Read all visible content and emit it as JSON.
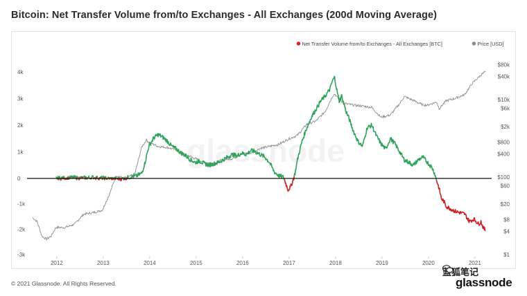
{
  "page": {
    "title": "Bitcoin: Net Transfer Volume from/to Exchanges - All Exchanges (200d Moving Average)",
    "footer": "© 2021 Glassnode. All Rights Reserved.",
    "brand": "glassnode",
    "watermark": "glassnode",
    "overlay_text": "蓝狐笔记"
  },
  "colors": {
    "positive_flow": "#2da45a",
    "negative_flow": "#cc1f1f",
    "price": "#8c8c8c",
    "zero_line": "#111111",
    "legend_dot_flow": "#d62728",
    "legend_dot_price": "#8c8c8c"
  },
  "chart_data": {
    "type": "line",
    "title": "Bitcoin: Net Transfer Volume from/to Exchanges - All Exchanges (200d Moving Average)",
    "legend_position": "top-right",
    "grid": false,
    "legend": [
      {
        "label": "Net Transfer Volume from/to Exchanges - All Exchanges [BTC]",
        "color": "#d62728"
      },
      {
        "label": "Price [USD]",
        "color": "#8c8c8c"
      }
    ],
    "x_ticks": [
      "2012",
      "2013",
      "2014",
      "2015",
      "2016",
      "2017",
      "2018",
      "2019",
      "2020",
      "2021"
    ],
    "x_range": [
      2011.5,
      2021.35
    ],
    "y_left": {
      "ticks": [
        {
          "label": "4k",
          "value": 4000
        },
        {
          "label": "3k",
          "value": 3000
        },
        {
          "label": "2k",
          "value": 2000
        },
        {
          "label": "1k",
          "value": 1000
        },
        {
          "label": "0",
          "value": 0
        },
        {
          "label": "-1k",
          "value": -1000
        },
        {
          "label": "-2k",
          "value": -2000
        },
        {
          "label": "-3k",
          "value": -3000
        }
      ],
      "range": [
        -3000,
        4300
      ]
    },
    "y_right": {
      "scale": "log",
      "ticks": [
        {
          "label": "$80k",
          "value": 80000
        },
        {
          "label": "$40k",
          "value": 40000
        },
        {
          "label": "$10k",
          "value": 10000
        },
        {
          "label": "$6k",
          "value": 6000
        },
        {
          "label": "$2k",
          "value": 2000
        },
        {
          "label": "$800",
          "value": 800
        },
        {
          "label": "$400",
          "value": 400
        },
        {
          "label": "$100",
          "value": 100
        },
        {
          "label": "$60",
          "value": 60
        },
        {
          "label": "$20",
          "value": 20
        },
        {
          "label": "$8",
          "value": 8
        },
        {
          "label": "$4",
          "value": 4
        },
        {
          "label": "$1",
          "value": 1
        }
      ],
      "range": [
        1,
        100000
      ]
    },
    "series": [
      {
        "name": "Net Transfer Volume from/to Exchanges - All Exchanges [BTC]",
        "axis": "left",
        "x": [
          2012.0,
          2012.3,
          2012.6,
          2012.8,
          2013.0,
          2013.2,
          2013.4,
          2013.6,
          2013.75,
          2013.85,
          2013.92,
          2014.0,
          2014.1,
          2014.2,
          2014.3,
          2014.4,
          2014.5,
          2014.6,
          2014.7,
          2014.8,
          2014.9,
          2015.0,
          2015.1,
          2015.2,
          2015.3,
          2015.4,
          2015.5,
          2015.6,
          2015.7,
          2015.8,
          2015.9,
          2016.0,
          2016.1,
          2016.2,
          2016.3,
          2016.4,
          2016.5,
          2016.6,
          2016.7,
          2016.8,
          2016.9,
          2016.95,
          2017.0,
          2017.05,
          2017.1,
          2017.15,
          2017.2,
          2017.3,
          2017.4,
          2017.5,
          2017.6,
          2017.7,
          2017.8,
          2017.9,
          2017.95,
          2018.0,
          2018.05,
          2018.1,
          2018.15,
          2018.2,
          2018.25,
          2018.3,
          2018.4,
          2018.5,
          2018.6,
          2018.7,
          2018.8,
          2018.9,
          2019.0,
          2019.1,
          2019.2,
          2019.3,
          2019.4,
          2019.5,
          2019.6,
          2019.7,
          2019.8,
          2019.9,
          2020.0,
          2020.1,
          2020.15,
          2020.2,
          2020.25,
          2020.3,
          2020.35,
          2020.4,
          2020.5,
          2020.6,
          2020.7,
          2020.8,
          2020.9,
          2021.0,
          2021.1,
          2021.15,
          2021.2,
          2021.25
        ],
        "y": [
          0,
          30,
          20,
          40,
          10,
          0,
          -20,
          50,
          100,
          200,
          600,
          1200,
          1500,
          1650,
          1550,
          1400,
          1200,
          1100,
          950,
          850,
          700,
          600,
          650,
          550,
          500,
          550,
          600,
          700,
          800,
          900,
          850,
          950,
          900,
          1050,
          1000,
          900,
          800,
          600,
          250,
          100,
          50,
          -200,
          -450,
          -350,
          -100,
          200,
          700,
          1400,
          1900,
          2300,
          2600,
          2900,
          3100,
          3350,
          3650,
          3800,
          3300,
          2900,
          3100,
          2800,
          2500,
          2300,
          1800,
          1400,
          1200,
          1900,
          2000,
          1600,
          1300,
          1100,
          1500,
          1300,
          1000,
          700,
          600,
          500,
          700,
          800,
          600,
          400,
          200,
          -100,
          -400,
          -800,
          -900,
          -1100,
          -1200,
          -1300,
          -1350,
          -1400,
          -1700,
          -1600,
          -1800,
          -1700,
          -1950,
          -2050
        ]
      },
      {
        "name": "Price [USD]",
        "axis": "right",
        "x": [
          2011.5,
          2011.6,
          2011.7,
          2011.8,
          2011.9,
          2012.0,
          2012.2,
          2012.4,
          2012.6,
          2012.8,
          2013.0,
          2013.15,
          2013.3,
          2013.5,
          2013.7,
          2013.85,
          2013.95,
          2014.0,
          2014.2,
          2014.4,
          2014.6,
          2014.8,
          2015.0,
          2015.2,
          2015.4,
          2015.6,
          2015.8,
          2016.0,
          2016.2,
          2016.4,
          2016.6,
          2016.8,
          2017.0,
          2017.2,
          2017.4,
          2017.6,
          2017.8,
          2017.95,
          2018.0,
          2018.1,
          2018.2,
          2018.4,
          2018.6,
          2018.8,
          2018.95,
          2019.0,
          2019.2,
          2019.4,
          2019.5,
          2019.7,
          2019.9,
          2020.0,
          2020.2,
          2020.25,
          2020.4,
          2020.6,
          2020.8,
          2020.95,
          2021.0,
          2021.1,
          2021.2,
          2021.25
        ],
        "y": [
          9,
          7,
          3,
          2.5,
          3,
          5,
          5,
          6,
          11,
          12,
          14,
          35,
          110,
          90,
          120,
          600,
          900,
          800,
          620,
          580,
          500,
          380,
          300,
          240,
          230,
          280,
          300,
          400,
          420,
          550,
          620,
          700,
          950,
          1200,
          2300,
          2800,
          5000,
          12000,
          14000,
          10000,
          8000,
          7200,
          6800,
          6300,
          4000,
          3500,
          4000,
          7900,
          12000,
          9500,
          7300,
          7200,
          8700,
          5800,
          9300,
          10800,
          13500,
          25000,
          29000,
          38000,
          48000,
          52000
        ]
      }
    ]
  }
}
